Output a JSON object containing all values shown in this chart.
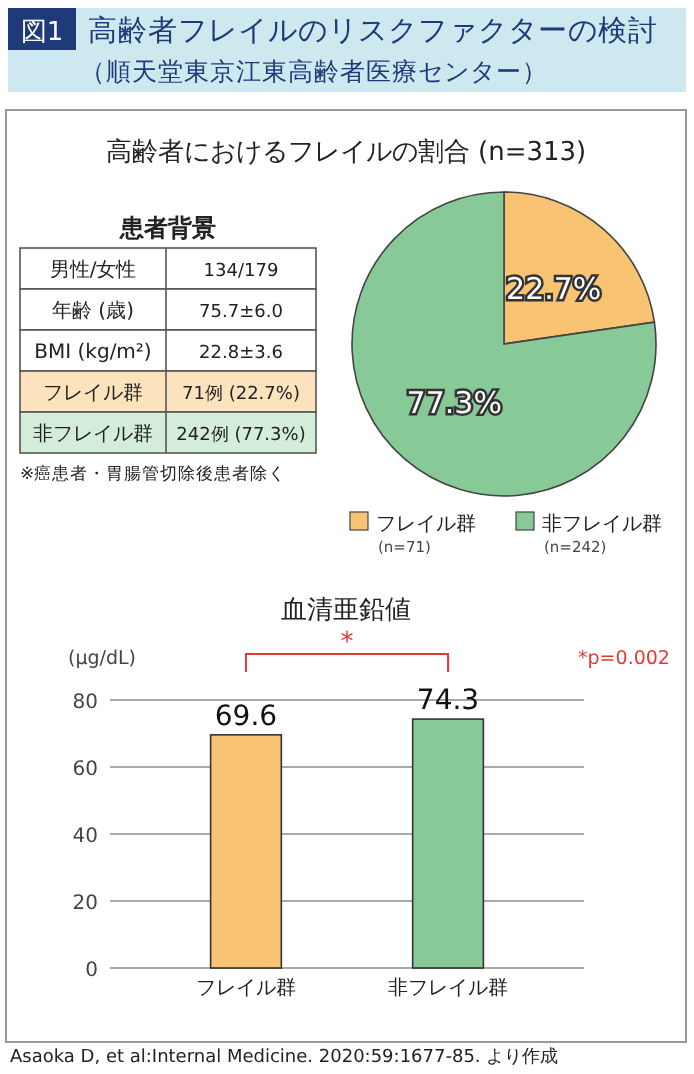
{
  "chart_data": [
    {
      "type": "other",
      "title": "図1 高齢者フレイルのリスクファクターの検討",
      "subtitle": "（順天堂東京江東高齢者医療センター）"
    },
    {
      "type": "other",
      "title": "患者背景",
      "annotations": [
        "男性/女性",
        "134/179",
        "年齢 (歳)",
        "75.7±6.0",
        "BMI (kg/m²)",
        "22.8±3.6",
        "フレイル群",
        "71例 (22.7%)",
        "非フレイル群",
        "242例 (77.3%)",
        "※癌患者・胃腸管切除後患者除く"
      ],
      "colors": [
        "#ffffff",
        "#ffffff",
        "#ffffff",
        "#fde3bd",
        "#d4edda"
      ]
    },
    {
      "type": "pie",
      "title": "高齢者におけるフレイルの割合 (n=313)",
      "categories": [
        "フレイル群",
        "非フレイル群"
      ],
      "values": [
        22.7,
        77.3
      ],
      "colors": [
        "#f9c374",
        "#88c998"
      ],
      "value_labels": [
        "22.7%",
        "77.3%"
      ],
      "legend": "bottom",
      "annotations": [
        "(n=71)",
        "(n=242)"
      ]
    },
    {
      "type": "bar",
      "title": "血清亜鉛値",
      "ylabel": "(μg/dL)",
      "categories": [
        "フレイル群",
        "非フレイル群"
      ],
      "values": [
        69.6,
        74.3
      ],
      "colors": [
        "#f9c374",
        "#88c998"
      ],
      "ylim": [
        0,
        80
      ],
      "yticks": [
        0,
        20,
        40,
        60,
        80
      ],
      "grid": "y",
      "data_labels": true,
      "annotations": [
        "*",
        "*p=0.002",
        "Asaoka D, et al:Internal Medicine. 2020:59:1677-85. より作成"
      ]
    }
  ]
}
